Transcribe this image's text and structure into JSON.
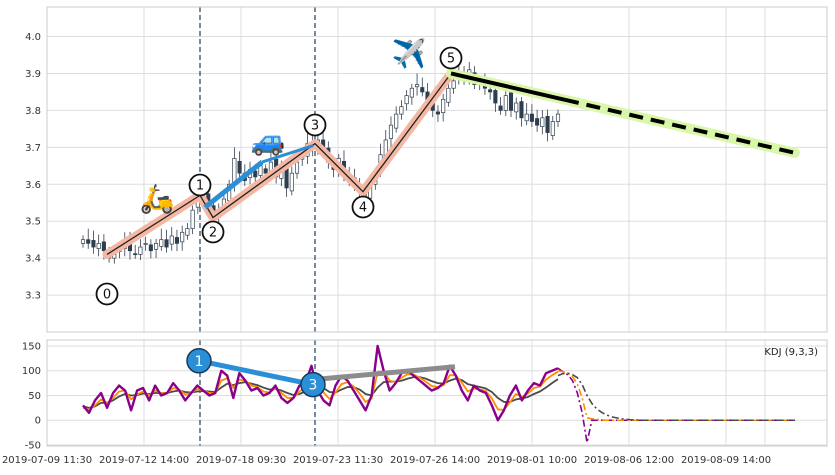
{
  "chart_data": [
    {
      "type": "candlestick",
      "title": "",
      "ylim": [
        3.2,
        4.08
      ],
      "yticks": [
        "3.3",
        "3.4",
        "3.5",
        "3.6",
        "3.7",
        "3.8",
        "3.9",
        "4.0"
      ],
      "grid": true,
      "price_points": [
        3.45,
        3.44,
        3.43,
        3.44,
        3.42,
        3.4,
        3.41,
        3.43,
        3.44,
        3.42,
        3.41,
        3.43,
        3.44,
        3.42,
        3.44,
        3.45,
        3.43,
        3.46,
        3.44,
        3.47,
        3.48,
        3.53,
        3.56,
        3.57,
        3.55,
        3.51,
        3.53,
        3.56,
        3.6,
        3.67,
        3.63,
        3.61,
        3.64,
        3.62,
        3.65,
        3.63,
        3.66,
        3.62,
        3.64,
        3.59,
        3.63,
        3.66,
        3.68,
        3.71,
        3.7,
        3.72,
        3.69,
        3.66,
        3.64,
        3.67,
        3.62,
        3.61,
        3.6,
        3.58,
        3.57,
        3.6,
        3.63,
        3.68,
        3.72,
        3.76,
        3.79,
        3.81,
        3.84,
        3.86,
        3.87,
        3.85,
        3.82,
        3.8,
        3.79,
        3.83,
        3.86,
        3.88,
        3.9,
        3.89,
        3.91,
        3.87,
        3.88,
        3.86,
        3.85,
        3.82,
        3.8,
        3.84,
        3.8,
        3.82,
        3.78,
        3.79,
        3.77,
        3.76,
        3.78,
        3.74,
        3.77,
        3.79
      ],
      "waves": [
        {
          "label": "0",
          "value": 3.41
        },
        {
          "label": "1",
          "value": 3.57
        },
        {
          "label": "2",
          "value": 3.51
        },
        {
          "label": "3",
          "value": 3.71
        },
        {
          "label": "4",
          "value": 3.58
        },
        {
          "label": "5",
          "value": 3.9
        }
      ],
      "projection": {
        "from": 3.9,
        "to": 3.685
      },
      "emoji": [
        "🛵",
        "🚙",
        "✈️"
      ]
    },
    {
      "type": "line",
      "legend": "KDJ (9,3,3)",
      "ylim": [
        -52,
        162
      ],
      "yticks": [
        "-50",
        "0",
        "50",
        "100",
        "150"
      ],
      "xticks": [
        "2019-07-09 11:30",
        "2019-07-12 14:00",
        "2019-07-18 09:30",
        "2019-07-23 11:30",
        "2019-07-26 14:00",
        "2019-08-01 10:00",
        "2019-08-06 12:00",
        "2019-08-09 14:00"
      ],
      "series": [
        {
          "color": "#8b008b",
          "values": [
            30,
            15,
            40,
            55,
            25,
            55,
            70,
            60,
            20,
            60,
            65,
            40,
            70,
            50,
            55,
            75,
            60,
            40,
            55,
            70,
            60,
            50,
            55,
            100,
            90,
            45,
            95,
            80,
            60,
            65,
            50,
            55,
            70,
            45,
            35,
            45,
            70,
            75,
            110,
            60,
            40,
            30,
            70,
            90,
            80,
            60,
            40,
            20,
            50,
            150,
            100,
            60,
            75,
            95,
            100,
            90,
            80,
            70,
            60,
            65,
            75,
            110,
            90,
            60,
            40,
            70,
            60,
            55,
            30,
            0,
            20,
            50,
            70,
            40,
            60,
            75,
            70,
            95,
            100,
            105
          ]
        },
        {
          "color": "#ff8c00",
          "values": [
            25,
            22,
            30,
            42,
            35,
            45,
            58,
            60,
            42,
            52,
            58,
            50,
            60,
            55,
            55,
            65,
            62,
            52,
            55,
            63,
            60,
            55,
            55,
            80,
            85,
            65,
            82,
            80,
            70,
            67,
            58,
            56,
            64,
            55,
            45,
            45,
            58,
            66,
            88,
            74,
            56,
            43,
            56,
            73,
            77,
            68,
            54,
            37,
            44,
            97,
            99,
            80,
            77,
            86,
            93,
            92,
            86,
            78,
            69,
            67,
            71,
            91,
            91,
            76,
            58,
            64,
            62,
            59,
            44,
            22,
            21,
            36,
            53,
            47,
            54,
            65,
            68,
            82,
            91,
            98
          ]
        },
        {
          "color": "#4a4a4a",
          "values": [
            28,
            25,
            28,
            35,
            35,
            40,
            48,
            53,
            50,
            51,
            54,
            53,
            55,
            55,
            55,
            58,
            60,
            57,
            56,
            58,
            59,
            58,
            57,
            66,
            74,
            71,
            75,
            77,
            74,
            71,
            66,
            62,
            63,
            60,
            55,
            51,
            53,
            58,
            68,
            70,
            65,
            57,
            56,
            62,
            67,
            67,
            62,
            53,
            50,
            66,
            77,
            78,
            78,
            80,
            84,
            87,
            87,
            84,
            79,
            75,
            74,
            80,
            84,
            81,
            73,
            70,
            67,
            64,
            57,
            45,
            37,
            37,
            42,
            44,
            47,
            53,
            58,
            66,
            75,
            83
          ]
        }
      ],
      "projection": [
        {
          "color": "#8b008b",
          "values": [
            105,
            98,
            92,
            80,
            55,
            15,
            -45,
            0,
            0,
            0,
            0,
            0,
            0,
            0,
            0,
            0,
            0,
            0,
            0,
            0,
            0,
            0,
            0,
            0,
            0,
            0,
            0,
            0,
            0,
            0,
            0,
            0,
            0,
            0,
            0,
            0,
            0,
            0,
            0,
            0,
            0,
            0,
            0,
            0,
            0,
            0,
            0,
            0,
            0,
            0
          ]
        },
        {
          "color": "#ff8c00",
          "values": [
            100,
            98,
            95,
            88,
            73,
            45,
            5,
            3,
            2,
            1,
            0,
            0,
            0,
            0,
            0,
            0,
            0,
            0,
            0,
            0,
            0,
            0,
            0,
            0,
            0,
            0,
            0,
            0,
            0,
            0,
            0,
            0,
            0,
            0,
            0,
            0,
            0,
            0,
            0,
            0,
            0,
            0,
            0,
            0,
            0,
            0,
            0,
            0,
            0,
            0
          ]
        },
        {
          "color": "#4a4a4a",
          "values": [
            90,
            94,
            95,
            92,
            86,
            72,
            50,
            34,
            23,
            16,
            11,
            7,
            5,
            3,
            2,
            1,
            1,
            0,
            0,
            0,
            0,
            0,
            0,
            0,
            0,
            0,
            0,
            0,
            0,
            0,
            0,
            0,
            0,
            0,
            0,
            0,
            0,
            0,
            0,
            0,
            0,
            0,
            0,
            0,
            0,
            0,
            0,
            0,
            0,
            0
          ]
        }
      ],
      "divergence_labels": [
        "1",
        "3"
      ]
    }
  ]
}
